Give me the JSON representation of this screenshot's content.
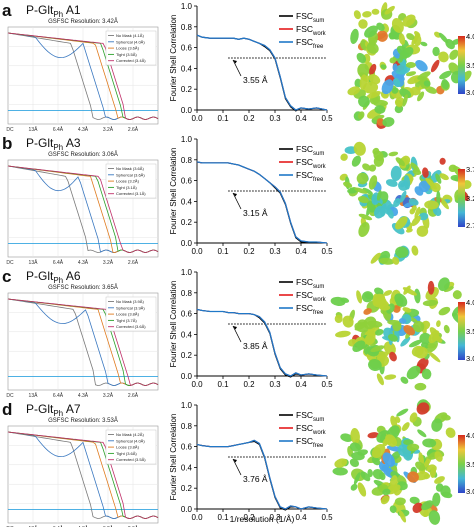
{
  "colors": {
    "fsc_sum": "#000000",
    "fsc_work": "#e41a1c",
    "fsc_free": "#1f78c8",
    "gs_nomask": "#7a7a7a",
    "gs_spherical": "#3a78c0",
    "gs_loose": "#e07b1f",
    "gs_tight": "#2aa12a",
    "gs_corrected": "#c0306a",
    "gs_cut": "#35a6e0"
  },
  "shared": {
    "fsc_ylabel": "Fourier Shell Correlation",
    "fsc_xlabel": "1/resolution (1/Å)",
    "fsc_yticks": [
      "0.0",
      "0.2",
      "0.4",
      "0.6",
      "0.8",
      "1.0"
    ],
    "fsc_xticks": [
      "0.0",
      "0.1",
      "0.2",
      "0.3",
      "0.4",
      "0.5"
    ],
    "legend_sum": "FSC",
    "legend_sum_sub": "sum",
    "legend_work": "FSC",
    "legend_work_sub": "work",
    "legend_free": "FSC",
    "legend_free_sub": "free",
    "gs_xticks": [
      "DC",
      "13Å",
      "6.4Å",
      "4.3Å",
      "3.2Å",
      "2.6Å"
    ]
  },
  "panels": [
    {
      "letter": "a",
      "title_main": "P-Glt",
      "title_sub": "Ph",
      "title_suffix": " A1",
      "gs_title": "GSFSC Resolution: 3.42Å",
      "gs_legend": [
        "No Mask (4.1Å)",
        "Spherical (4.0Å)",
        "Loose (3.6Å)",
        "Tight (3.5Å)",
        "Corrected (3.4Å)"
      ],
      "annotation": "3.55 Å",
      "colorbar": [
        "4.0",
        "3.5",
        "3.0"
      ]
    },
    {
      "letter": "b",
      "title_main": "P-Glt",
      "title_sub": "Ph",
      "title_suffix": " A3",
      "gs_title": "GSFSC Resolution: 3.06Å",
      "gs_legend": [
        "No Mask (3.6Å)",
        "Spherical (3.6Å)",
        "Loose (3.2Å)",
        "Tight (3.1Å)",
        "Corrected (3.1Å)"
      ],
      "annotation": "3.15 Å",
      "colorbar": [
        "3.7",
        "3.2",
        "2.7"
      ]
    },
    {
      "letter": "c",
      "title_main": "P-Glt",
      "title_sub": "Ph",
      "title_suffix": " A6",
      "gs_title": "GSFSC Resolution: 3.65Å",
      "gs_legend": [
        "No Mask (3.9Å)",
        "Spherical (3.9Å)",
        "Loose (3.8Å)",
        "Tight (3.7Å)",
        "Corrected (3.6Å)"
      ],
      "annotation": "3.85 Å",
      "colorbar": [
        "4.0",
        "3.5",
        "3.0"
      ]
    },
    {
      "letter": "d",
      "title_main": "P-Glt",
      "title_sub": "Ph",
      "title_suffix": " A7",
      "gs_title": "GSFSC Resolution: 3.53Å",
      "gs_legend": [
        "No Mask (4.2Å)",
        "Spherical (4.0Å)",
        "Loose (3.8Å)",
        "Tight (3.6Å)",
        "Corrected (3.5Å)"
      ],
      "annotation": "3.76 Å",
      "colorbar": [
        "4.0",
        "3.5",
        "3.0"
      ]
    }
  ],
  "chart_data": [
    {
      "type": "line",
      "panel": "a",
      "xlabel": "1/resolution (1/Å)",
      "ylabel": "Fourier Shell Correlation",
      "xlim": [
        0,
        0.5
      ],
      "ylim": [
        0,
        1
      ],
      "threshold": 0.5,
      "x": [
        0.0,
        0.02,
        0.05,
        0.1,
        0.12,
        0.14,
        0.16,
        0.18,
        0.2,
        0.22,
        0.24,
        0.26,
        0.28,
        0.3,
        0.32,
        0.34,
        0.36,
        0.38,
        0.4,
        0.43,
        0.46,
        0.5
      ],
      "series": [
        {
          "name": "FSCsum",
          "values": [
            0.72,
            0.7,
            0.69,
            0.69,
            0.69,
            0.69,
            0.68,
            0.69,
            0.68,
            0.66,
            0.64,
            0.62,
            0.58,
            0.5,
            0.32,
            0.12,
            0.04,
            0.0,
            0.02,
            0.01,
            0.02,
            0.0
          ]
        },
        {
          "name": "FSCwork",
          "values": [
            0.72,
            0.7,
            0.69,
            0.69,
            0.69,
            0.69,
            0.68,
            0.69,
            0.68,
            0.66,
            0.64,
            0.62,
            0.58,
            0.5,
            0.32,
            0.12,
            0.04,
            0.0,
            0.02,
            0.01,
            0.02,
            0.0
          ]
        },
        {
          "name": "FSCfree",
          "values": [
            0.72,
            0.7,
            0.69,
            0.69,
            0.69,
            0.69,
            0.68,
            0.69,
            0.68,
            0.66,
            0.64,
            0.61,
            0.57,
            0.49,
            0.31,
            0.11,
            0.03,
            -0.01,
            0.02,
            0.01,
            0.02,
            0.0
          ]
        }
      ]
    },
    {
      "type": "line",
      "panel": "b",
      "xlabel": "1/resolution (1/Å)",
      "ylabel": "Fourier Shell Correlation",
      "xlim": [
        0,
        0.5
      ],
      "ylim": [
        0,
        1
      ],
      "threshold": 0.5,
      "x": [
        0.0,
        0.02,
        0.05,
        0.1,
        0.12,
        0.14,
        0.16,
        0.18,
        0.2,
        0.22,
        0.24,
        0.26,
        0.28,
        0.3,
        0.32,
        0.34,
        0.36,
        0.38,
        0.4,
        0.43,
        0.46,
        0.5
      ],
      "series": [
        {
          "name": "FSCsum",
          "values": [
            0.78,
            0.77,
            0.77,
            0.77,
            0.77,
            0.76,
            0.75,
            0.73,
            0.71,
            0.69,
            0.66,
            0.62,
            0.58,
            0.54,
            0.49,
            0.38,
            0.2,
            0.06,
            0.02,
            0.01,
            0.01,
            0.0
          ]
        },
        {
          "name": "FSCwork",
          "values": [
            0.78,
            0.77,
            0.77,
            0.77,
            0.77,
            0.76,
            0.75,
            0.73,
            0.71,
            0.69,
            0.66,
            0.62,
            0.58,
            0.54,
            0.49,
            0.38,
            0.2,
            0.06,
            0.02,
            0.01,
            0.01,
            0.0
          ]
        },
        {
          "name": "FSCfree",
          "values": [
            0.78,
            0.77,
            0.77,
            0.77,
            0.77,
            0.76,
            0.75,
            0.73,
            0.71,
            0.69,
            0.66,
            0.62,
            0.58,
            0.53,
            0.48,
            0.37,
            0.19,
            0.05,
            0.01,
            0.01,
            0.01,
            0.0
          ]
        }
      ]
    },
    {
      "type": "line",
      "panel": "c",
      "xlabel": "1/resolution (1/Å)",
      "ylabel": "Fourier Shell Correlation",
      "xlim": [
        0,
        0.5
      ],
      "ylim": [
        0,
        1
      ],
      "threshold": 0.5,
      "x": [
        0.0,
        0.02,
        0.05,
        0.1,
        0.12,
        0.14,
        0.16,
        0.18,
        0.2,
        0.22,
        0.24,
        0.26,
        0.28,
        0.3,
        0.32,
        0.34,
        0.36,
        0.38,
        0.4,
        0.43,
        0.46,
        0.5
      ],
      "series": [
        {
          "name": "FSCsum",
          "values": [
            0.64,
            0.63,
            0.62,
            0.62,
            0.61,
            0.61,
            0.6,
            0.6,
            0.6,
            0.59,
            0.57,
            0.52,
            0.42,
            0.22,
            0.08,
            0.02,
            0.0,
            0.03,
            0.01,
            0.02,
            0.01,
            0.0
          ]
        },
        {
          "name": "FSCwork",
          "values": [
            0.64,
            0.63,
            0.62,
            0.62,
            0.61,
            0.61,
            0.6,
            0.6,
            0.6,
            0.59,
            0.57,
            0.52,
            0.42,
            0.22,
            0.08,
            0.02,
            0.0,
            0.03,
            0.01,
            0.02,
            0.01,
            0.0
          ]
        },
        {
          "name": "FSCfree",
          "values": [
            0.64,
            0.63,
            0.62,
            0.62,
            0.61,
            0.61,
            0.6,
            0.6,
            0.6,
            0.59,
            0.56,
            0.51,
            0.41,
            0.21,
            0.07,
            0.01,
            -0.01,
            0.02,
            0.01,
            0.02,
            0.01,
            0.0
          ]
        }
      ]
    },
    {
      "type": "line",
      "panel": "d",
      "xlabel": "1/resolution (1/Å)",
      "ylabel": "Fourier Shell Correlation",
      "xlim": [
        0,
        0.5
      ],
      "ylim": [
        0,
        1
      ],
      "threshold": 0.5,
      "x": [
        0.0,
        0.02,
        0.05,
        0.1,
        0.12,
        0.14,
        0.16,
        0.18,
        0.2,
        0.22,
        0.24,
        0.26,
        0.28,
        0.3,
        0.32,
        0.34,
        0.36,
        0.38,
        0.4,
        0.43,
        0.46,
        0.5
      ],
      "series": [
        {
          "name": "FSCsum",
          "values": [
            0.62,
            0.61,
            0.6,
            0.6,
            0.6,
            0.61,
            0.62,
            0.63,
            0.64,
            0.66,
            0.63,
            0.5,
            0.3,
            0.12,
            0.02,
            0.0,
            0.03,
            0.02,
            0.0,
            0.02,
            0.01,
            0.0
          ]
        },
        {
          "name": "FSCwork",
          "values": [
            0.62,
            0.61,
            0.6,
            0.6,
            0.6,
            0.61,
            0.62,
            0.63,
            0.64,
            0.66,
            0.63,
            0.5,
            0.3,
            0.12,
            0.02,
            0.0,
            0.03,
            0.02,
            0.0,
            0.02,
            0.01,
            0.0
          ]
        },
        {
          "name": "FSCfree",
          "values": [
            0.62,
            0.61,
            0.6,
            0.6,
            0.6,
            0.61,
            0.62,
            0.63,
            0.64,
            0.65,
            0.62,
            0.49,
            0.29,
            0.11,
            0.01,
            -0.01,
            0.02,
            0.02,
            0.0,
            0.02,
            0.01,
            0.0
          ]
        }
      ]
    }
  ]
}
